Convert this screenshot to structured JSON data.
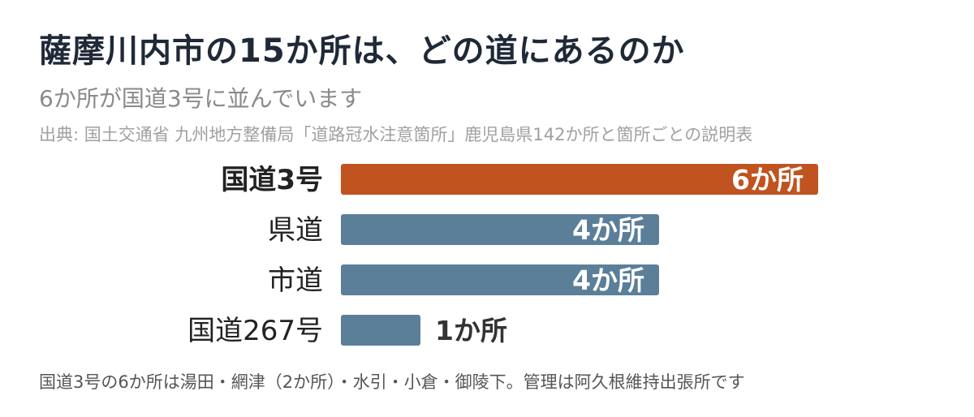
{
  "title": "薩摩川内市の15か所は、どの道にあるのか",
  "subtitle": "6か所が国道3号に並んでいます",
  "source": "出典: 国土交通省 九州地方整備局「道路冠水注意箇所」鹿児島県142か所と箇所ごとの説明表",
  "footnote": "国道3号の6か所は湯田・網津（2か所）・水引・小倉・御陵下。管理は阿久根維持出張所です",
  "colors": {
    "highlight": "#c0531f",
    "bar": "#5b7f98",
    "label_inside": "#ffffff",
    "label_outside": "#333333",
    "category_text": "#222222"
  },
  "chart_data": {
    "type": "bar",
    "orientation": "horizontal",
    "categories": [
      "国道3号",
      "県道",
      "市道",
      "国道267号"
    ],
    "values": [
      6,
      4,
      4,
      1
    ],
    "value_labels": [
      "6か所",
      "4か所",
      "4か所",
      "1か所"
    ],
    "highlight_index": 0,
    "title": "薩摩川内市の15か所は、どの道にあるのか",
    "xlim": [
      0,
      6
    ],
    "grid": false,
    "legend": "none"
  }
}
